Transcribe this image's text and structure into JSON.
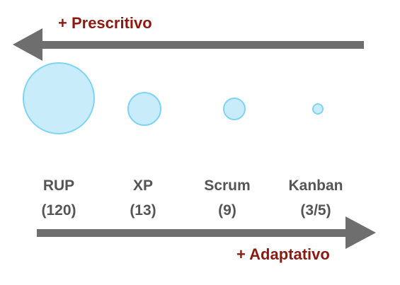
{
  "top_arrow": {
    "label": "+ Prescritivo",
    "direction": "left"
  },
  "bottom_arrow": {
    "label": "+ Adaptativo",
    "direction": "right"
  },
  "colors": {
    "arrow": "#6e6e6e",
    "label": "#8b1a12",
    "bubble_fill": "#c9ecfb",
    "bubble_stroke": "#7fd3f5",
    "method_text": "#555555"
  },
  "methods": [
    {
      "name": "RUP",
      "count": "(120)"
    },
    {
      "name": "XP",
      "count": "(13)"
    },
    {
      "name": "Scrum",
      "count": "(9)"
    },
    {
      "name": "Kanban",
      "count": "(3/5)"
    }
  ]
}
